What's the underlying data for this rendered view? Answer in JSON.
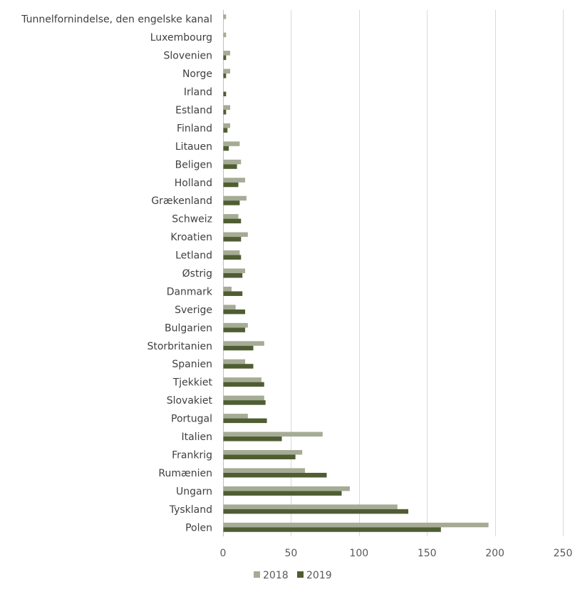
{
  "chart_data": {
    "type": "bar",
    "orientation": "horizontal",
    "title": "",
    "xlabel": "",
    "ylabel": "",
    "xlim": [
      0,
      250
    ],
    "x_ticks": [
      0,
      50,
      100,
      150,
      200,
      250
    ],
    "grid": true,
    "legend_position": "bottom",
    "categories": [
      "Tunnelfornindelse, den engelske kanal",
      "Luxembourg",
      "Slovenien",
      "Norge",
      "Irland",
      "Estland",
      "Finland",
      "Litauen",
      "Beligen",
      "Holland",
      "Grækenland",
      "Schweiz",
      "Kroatien",
      "Letland",
      "Østrig",
      "Danmark",
      "Sverige",
      "Bulgarien",
      "Storbritanien",
      "Spanien",
      "Tjekkiet",
      "Slovakiet",
      "Portugal",
      "Italien",
      "Frankrig",
      "Rumænien",
      "Ungarn",
      "Tyskland",
      "Polen"
    ],
    "series": [
      {
        "name": "2018",
        "color": "#a5ab95",
        "values": [
          2,
          2,
          5,
          5,
          0,
          5,
          5,
          12,
          13,
          16,
          17,
          11,
          18,
          12,
          16,
          6,
          9,
          18,
          30,
          16,
          28,
          30,
          18,
          73,
          58,
          60,
          93,
          128,
          195
        ]
      },
      {
        "name": "2019",
        "color": "#4f5d32",
        "values": [
          0,
          0,
          2,
          2,
          2,
          2,
          3,
          4,
          10,
          11,
          12,
          13,
          13,
          13,
          14,
          14,
          16,
          16,
          22,
          22,
          30,
          31,
          32,
          43,
          53,
          76,
          87,
          136,
          160
        ]
      }
    ]
  }
}
